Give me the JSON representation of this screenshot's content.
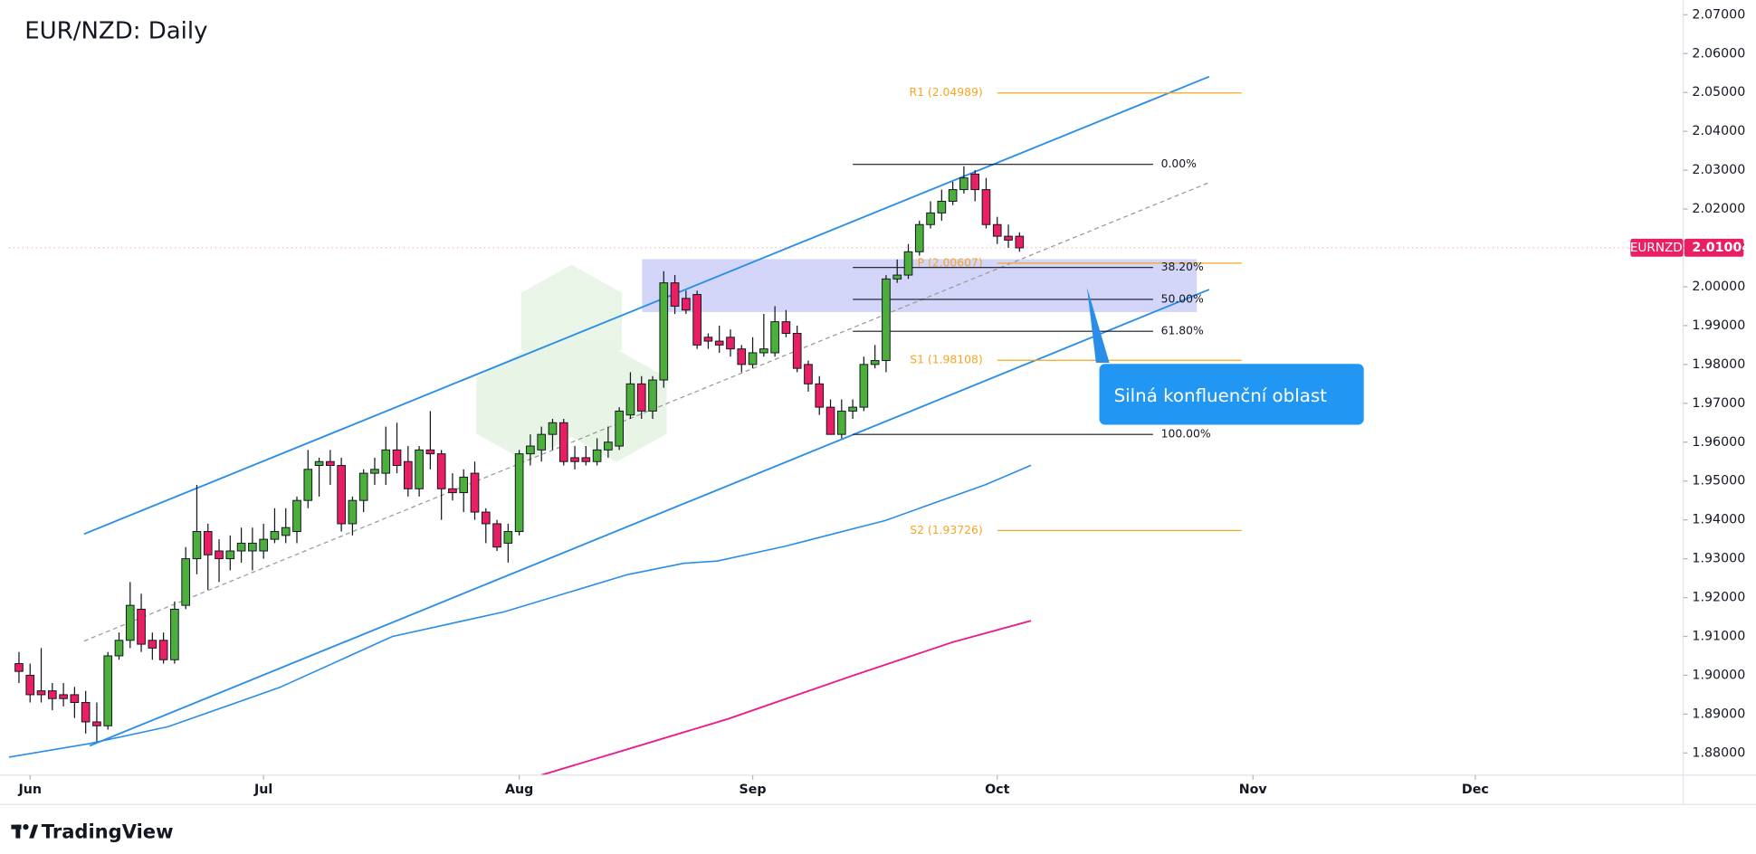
{
  "chart_data": {
    "type": "candlestick",
    "title": "EUR/NZD: Daily",
    "symbol": "EURNZD",
    "last_price": 2.01004,
    "up_color": "#4caf3b",
    "down_color": "#e91e63",
    "x": [
      -1,
      0,
      1,
      2,
      3,
      4,
      5,
      6,
      7,
      8,
      9,
      10,
      11,
      12,
      13,
      14,
      15,
      16,
      17,
      18,
      19,
      20,
      21,
      22,
      23,
      24,
      25,
      26,
      27,
      28,
      29,
      30,
      31,
      32,
      33,
      34,
      35,
      36,
      37,
      38,
      39,
      40,
      41,
      42,
      43,
      44,
      45,
      46,
      47,
      48,
      49,
      50,
      51,
      52,
      53,
      54,
      55,
      56,
      57,
      58,
      59,
      60,
      61,
      62,
      63,
      64,
      65,
      66,
      67,
      68,
      69,
      70,
      71,
      72,
      73,
      74,
      75,
      76,
      77,
      78,
      79,
      80,
      81,
      82,
      83,
      84,
      85,
      86,
      87,
      88,
      89
    ],
    "open": [
      1.903,
      1.9,
      1.896,
      1.896,
      1.895,
      1.895,
      1.893,
      1.888,
      1.887,
      1.905,
      1.909,
      1.917,
      1.909,
      1.909,
      1.904,
      1.918,
      1.93,
      1.937,
      1.932,
      1.93,
      1.932,
      1.932,
      1.932,
      1.935,
      1.936,
      1.937,
      1.945,
      1.954,
      1.955,
      1.954,
      1.939,
      1.945,
      1.952,
      1.952,
      1.958,
      1.955,
      1.948,
      1.958,
      1.957,
      1.948,
      1.947,
      1.952,
      1.942,
      1.939,
      1.934,
      1.937,
      1.957,
      1.958,
      1.962,
      1.965,
      1.956,
      1.956,
      1.955,
      1.958,
      1.959,
      1.967,
      1.975,
      1.968,
      1.976,
      2.001,
      1.997,
      1.998,
      1.987,
      1.986,
      1.987,
      1.984,
      1.98,
      1.983,
      1.983,
      1.991,
      1.988,
      1.98,
      1.975,
      1.969,
      1.962,
      1.968,
      1.969,
      1.98,
      1.981,
      2.002,
      2.003,
      2.009,
      2.016,
      2.019,
      2.022,
      2.025,
      2.029,
      2.025,
      2.016,
      2.013,
      2.013
    ],
    "high": [
      1.906,
      1.903,
      1.907,
      1.898,
      1.898,
      1.897,
      1.896,
      1.893,
      1.906,
      1.911,
      1.924,
      1.921,
      1.911,
      1.911,
      1.919,
      1.933,
      1.949,
      1.939,
      1.935,
      1.936,
      1.938,
      1.938,
      1.939,
      1.943,
      1.943,
      1.946,
      1.958,
      1.956,
      1.958,
      1.956,
      1.946,
      1.953,
      1.956,
      1.964,
      1.965,
      1.959,
      1.959,
      1.968,
      1.958,
      1.952,
      1.953,
      1.955,
      1.943,
      1.94,
      1.939,
      1.958,
      1.962,
      1.964,
      1.966,
      1.966,
      1.959,
      1.959,
      1.961,
      1.964,
      1.969,
      1.978,
      1.977,
      1.977,
      2.004,
      2.003,
      1.999,
      1.999,
      1.988,
      1.99,
      1.989,
      1.985,
      1.987,
      1.993,
      1.995,
      1.994,
      1.99,
      1.981,
      1.977,
      1.971,
      1.971,
      1.971,
      1.982,
      1.985,
      2.003,
      2.007,
      2.011,
      2.017,
      2.022,
      2.025,
      2.027,
      2.031,
      2.03,
      2.028,
      2.018,
      2.016,
      2.014
    ],
    "low": [
      1.898,
      1.893,
      1.893,
      1.891,
      1.892,
      1.889,
      1.885,
      1.883,
      1.886,
      1.904,
      1.907,
      1.906,
      1.904,
      1.903,
      1.903,
      1.917,
      1.926,
      1.922,
      1.924,
      1.927,
      1.929,
      1.927,
      1.93,
      1.934,
      1.934,
      1.934,
      1.943,
      1.946,
      1.949,
      1.937,
      1.936,
      1.942,
      1.949,
      1.949,
      1.952,
      1.946,
      1.946,
      1.953,
      1.94,
      1.945,
      1.942,
      1.94,
      1.934,
      1.932,
      1.929,
      1.936,
      1.954,
      1.955,
      1.958,
      1.954,
      1.953,
      1.954,
      1.954,
      1.956,
      1.958,
      1.966,
      1.966,
      1.966,
      1.974,
      1.993,
      1.993,
      1.984,
      1.984,
      1.983,
      1.982,
      1.978,
      1.979,
      1.982,
      1.982,
      1.987,
      1.978,
      1.973,
      1.967,
      1.962,
      1.961,
      1.966,
      1.968,
      1.979,
      1.978,
      2.001,
      2.002,
      2.008,
      2.015,
      2.017,
      2.021,
      2.024,
      2.022,
      2.015,
      2.011,
      2.01,
      2.009
    ],
    "close": [
      1.901,
      1.895,
      1.895,
      1.894,
      1.894,
      1.893,
      1.888,
      1.887,
      1.905,
      1.909,
      1.918,
      1.908,
      1.907,
      1.904,
      1.917,
      1.93,
      1.937,
      1.931,
      1.93,
      1.932,
      1.934,
      1.934,
      1.935,
      1.937,
      1.938,
      1.945,
      1.953,
      1.955,
      1.954,
      1.939,
      1.945,
      1.952,
      1.953,
      1.958,
      1.954,
      1.948,
      1.958,
      1.957,
      1.948,
      1.947,
      1.951,
      1.942,
      1.939,
      1.933,
      1.937,
      1.957,
      1.959,
      1.962,
      1.965,
      1.955,
      1.955,
      1.955,
      1.958,
      1.96,
      1.968,
      1.975,
      1.968,
      1.976,
      2.001,
      1.995,
      1.994,
      1.985,
      1.986,
      1.985,
      1.984,
      1.98,
      1.983,
      1.984,
      1.991,
      1.988,
      1.979,
      1.975,
      1.969,
      1.962,
      1.968,
      1.969,
      1.98,
      1.981,
      2.002,
      2.003,
      2.009,
      2.016,
      2.019,
      2.022,
      2.025,
      2.028,
      2.025,
      2.016,
      2.013,
      2.012,
      2.01
    ],
    "xlim": [
      -1.9,
      148.7
    ],
    "xticks": [
      {
        "value": 0,
        "label": "Jun"
      },
      {
        "value": 21,
        "label": "Jul"
      },
      {
        "value": 44,
        "label": "Aug"
      },
      {
        "value": 65,
        "label": "Sep"
      },
      {
        "value": 87,
        "label": "Oct"
      },
      {
        "value": 110,
        "label": "Nov"
      },
      {
        "value": 130,
        "label": "Dec"
      }
    ],
    "ylim": [
      1.8743,
      2.0738
    ],
    "yticks": [
      {
        "value": 1.88,
        "label": "1.88000"
      },
      {
        "value": 1.89,
        "label": "1.89000"
      },
      {
        "value": 1.9,
        "label": "1.90000"
      },
      {
        "value": 1.91,
        "label": "1.91000"
      },
      {
        "value": 1.92,
        "label": "1.92000"
      },
      {
        "value": 1.93,
        "label": "1.93000"
      },
      {
        "value": 1.94,
        "label": "1.94000"
      },
      {
        "value": 1.95,
        "label": "1.95000"
      },
      {
        "value": 1.96,
        "label": "1.96000"
      },
      {
        "value": 1.97,
        "label": "1.97000"
      },
      {
        "value": 1.98,
        "label": "1.98000"
      },
      {
        "value": 1.99,
        "label": "1.99000"
      },
      {
        "value": 2.0,
        "label": "2.00000"
      },
      {
        "value": 2.01,
        "label": "2.01000"
      },
      {
        "value": 2.02,
        "label": "2.02000"
      },
      {
        "value": 2.03,
        "label": "2.03000"
      },
      {
        "value": 2.04,
        "label": "2.04000"
      },
      {
        "value": 2.05,
        "label": "2.05000"
      },
      {
        "value": 2.06,
        "label": "2.06000"
      },
      {
        "value": 2.07,
        "label": "2.07000"
      }
    ],
    "pivots": [
      {
        "label": "R1 (2.04989)",
        "value": 2.04989
      },
      {
        "label": "P (2.00607)",
        "value": 2.00607
      },
      {
        "label": "S1 (1.98108)",
        "value": 1.98108
      },
      {
        "label": "S2 (1.93726)",
        "value": 1.93726
      }
    ],
    "pivot_color": "#f5a623",
    "fib": {
      "high": 2.0315,
      "low": 1.962,
      "levels": [
        {
          "value": 0,
          "label": "0.00%"
        },
        {
          "value": 38.2,
          "label": "38.20%"
        },
        {
          "value": 50,
          "label": "50.00%"
        },
        {
          "value": 61.8,
          "label": "61.80%"
        },
        {
          "value": 100,
          "label": "100.00%"
        }
      ]
    },
    "callout": "Silná konfluenční oblast",
    "brand": "TradingView"
  }
}
